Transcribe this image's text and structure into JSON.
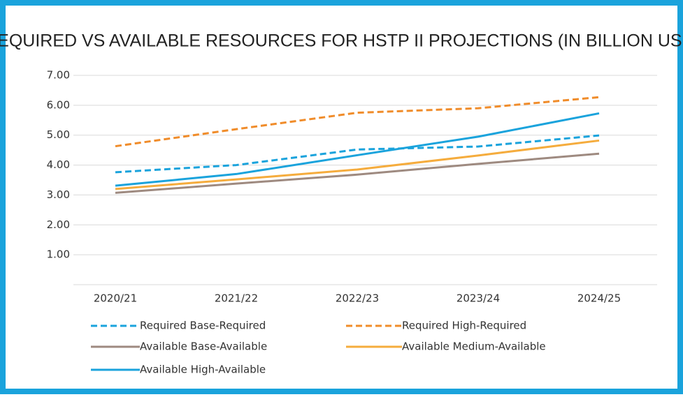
{
  "chart_data": {
    "type": "line",
    "title": "REQUIRED VS AVAILABLE RESOURCES FOR HSTP II PROJECTIONS (IN BILLION USD)",
    "categories": [
      "2020/21",
      "2021/22",
      "2022/23",
      "2023/24",
      "2024/25"
    ],
    "ylim": [
      0,
      7
    ],
    "yticks": [
      {
        "value": 1,
        "label": "1.00"
      },
      {
        "value": 2,
        "label": "2.00"
      },
      {
        "value": 3,
        "label": "3.00"
      },
      {
        "value": 4,
        "label": "4.00"
      },
      {
        "value": 5,
        "label": "5.00"
      },
      {
        "value": 6,
        "label": "6.00"
      },
      {
        "value": 7,
        "label": "7.00"
      }
    ],
    "grid": true,
    "legend": "bottom",
    "series": [
      {
        "name": "Required Base-Required",
        "color": "#1aa3dc",
        "dashed": true,
        "values": [
          3.76,
          4.0,
          4.52,
          4.62,
          4.99
        ]
      },
      {
        "name": "Required High-Required",
        "color": "#f08c2a",
        "dashed": true,
        "values": [
          4.63,
          5.2,
          5.75,
          5.9,
          6.27
        ]
      },
      {
        "name": "Available Base-Available",
        "color": "#9e8a80",
        "dashed": false,
        "values": [
          3.07,
          3.38,
          3.68,
          4.04,
          4.38
        ]
      },
      {
        "name": "Available Medium-Available",
        "color": "#f5ac3d",
        "dashed": false,
        "values": [
          3.2,
          3.52,
          3.85,
          4.32,
          4.82
        ]
      },
      {
        "name": "Available High-Available",
        "color": "#1aa3dc",
        "dashed": false,
        "values": [
          3.31,
          3.7,
          4.33,
          4.95,
          5.73
        ]
      }
    ]
  }
}
